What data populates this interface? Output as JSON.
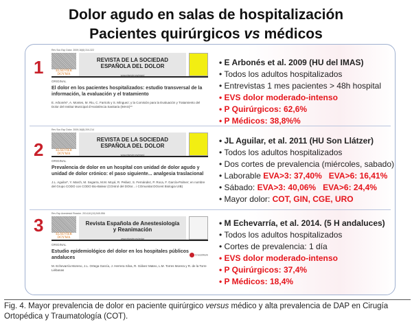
{
  "title": {
    "line1": "Dolor agudo en salas de hospitalización",
    "line2_pre": "Pacientes quirúrgicos ",
    "line2_em": "vs",
    "line2_post": " médicos"
  },
  "sections": [
    {
      "number": "1",
      "article": {
        "meta": "Rev Soc Esp Dolor. 2009;16(6):314-322",
        "journal_line1": "REVISTA DE LA SOCIEDAD",
        "journal_line2": "ESPAÑOLA DEL DOLOR",
        "url": "www.elsevier.es/resed",
        "publisher": "ELSEVIER DOYMA",
        "type": "ORIGINAL",
        "title": "El dolor en los pacientes hospitalizados: estudio transversal de la información, la evaluación y el tratamiento",
        "authors": "E. Arbonés*, A. Montes, M. Riu, C. Farriols y S. Mínguez; y la Comisión para la Evaluación y Tratamiento del Dolor del Institut Municipal d'Assistència Sanitaria (IMAS)**"
      },
      "bullets": {
        "b1": "E Arbonés et al. 2009 (HU del IMAS)",
        "b2": "Todos los adultos hospitalizados",
        "b3": "Entrevistas 1 mes pacientes > 48h hospital",
        "b4": "EVS dolor moderado-intenso",
        "b5": "P Quirúrgicos: 62,6%",
        "b6": "P Médicos: 38,8%%"
      }
    },
    {
      "number": "2",
      "article": {
        "meta": "Rev Soc Esp Dolor. 2009;16(8):209-214",
        "journal_line1": "REVISTA DE LA SOCIEDAD",
        "journal_line2": "ESPAÑOLA DEL DOLOR",
        "url": "www.elsevier.es/resed",
        "publisher": "ELSEVIER DOYMA",
        "type": "ORIGINAL",
        "title": "Prevalencia de dolor en un hospital con unidad de dolor agudo y unidad de dolor crónico: el paso siguiente... analgesia traslacional",
        "authors": "J.L. Aguilar*, Y. March, M. Segarra, M.M. Moyá, R. Peláez, S. Fernández, P. Roca, F. García-Palmer; en nombre del Grupo CODO con CODO Bio-Balear (COntrol del DOlor... i COmunitat DOcent Biologia UIB)"
      },
      "bullets": {
        "b1": "JL Aguilar, et al. 2011 (HU Son Llátzer)",
        "b2": "Todos los adultos hospitalizados",
        "b3": "Dos cortes de prevalencia (miércoles, sabado)",
        "b4_label": "Laborable ",
        "b4_v1": "EVA>3: 37,40%",
        "b4_v2": "EVA>6: 16,41%",
        "b5_label": "Sábado: ",
        "b5_v1": "EVA>3: 40,06%",
        "b5_v2": "EVA>6: 24,4%",
        "b6_label": "Mayor dolor: ",
        "b6_value": "COT, GIN, CGE, URO"
      }
    },
    {
      "number": "3",
      "article": {
        "meta": "Rev Esp Anestesiol Reanim. 2014;61(10):545-556",
        "journal_line1": "Revista Española de Anestesiología",
        "journal_line2": "y Reanimación",
        "url": "www.elsevier.es/redar",
        "publisher": "ELSEVIER DOYMA",
        "type": "ORIGINAL",
        "title": "Estudio epidemiológico del dolor en los hospitales públicos andaluces",
        "crossmark": "CrossMark",
        "authors": "M. Echevarría Moreno, J.L. Ortega García, J. Herrera Silva, R. Gálvez Mateo, L.M. Torres Morera y R. de la Torre Liébanas"
      },
      "bullets": {
        "b1": "M Echevarría, et al. 2014. (5 H andaluces)",
        "b2": "Todos los adultos hospitalizados",
        "b3": "Cortes de prevalencia: 1 día",
        "b4": "EVS dolor moderado-intenso",
        "b5": "P Quirúrgicos: 37,4%",
        "b6": "P Médicos: 18,4%"
      }
    }
  ],
  "caption": {
    "label": "Fig. 4.",
    "pre": " Mayor prevalencia de dolor en paciente quirúrgico ",
    "em": "versus",
    "post": " médico y alta prevalencia de DAP en Cirugía Ortopédica y Traumatología (COT)."
  },
  "colors": {
    "accent_red": "#e5141b",
    "number_red": "#c8202a",
    "border": "#9fb0d0",
    "cover_yellow": "#f2ee12"
  }
}
